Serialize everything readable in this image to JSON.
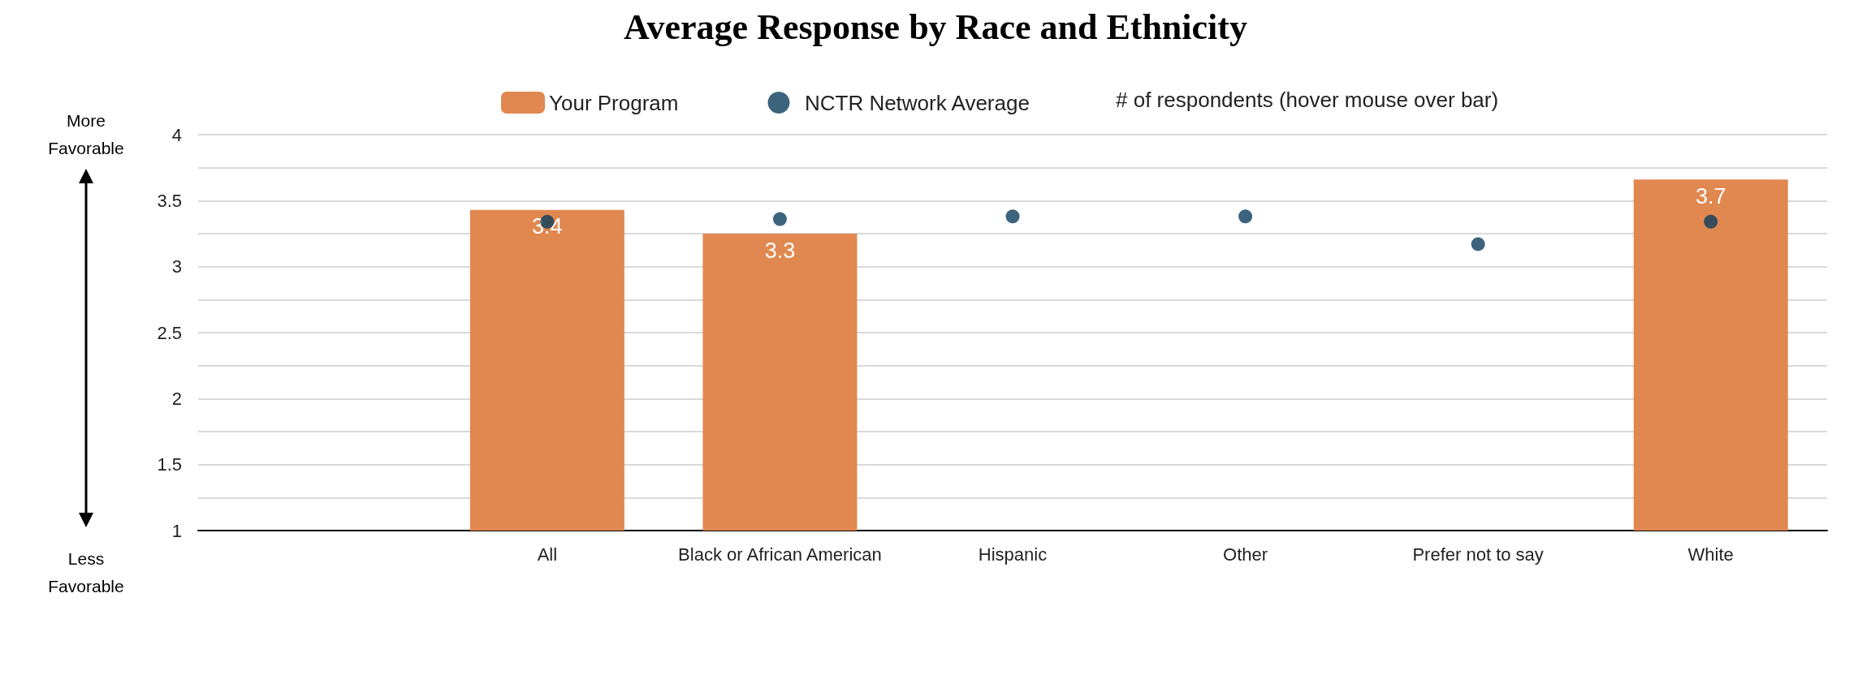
{
  "chart_data": {
    "type": "bar",
    "title": "Average Response by Race and Ethnicity",
    "categories": [
      null,
      "All",
      "Black or African American",
      "Hispanic",
      "Other",
      "Prefer not to say",
      "White"
    ],
    "series": [
      {
        "name": "Your Program",
        "color": "#e08850",
        "values": [
          null,
          3.43,
          3.25,
          null,
          null,
          null,
          3.66
        ],
        "value_labels": [
          null,
          "3.4",
          "3.3",
          null,
          null,
          null,
          "3.7"
        ]
      },
      {
        "name": "NCTR Network Average",
        "type": "scatter",
        "marker": "circle",
        "color": "#0b3d5c",
        "values": [
          null,
          3.34,
          3.36,
          3.38,
          3.38,
          3.17,
          3.34
        ]
      }
    ],
    "ylim": [
      1,
      4
    ],
    "yticks": [
      1,
      {
        "value": 1.25,
        "label": null
      },
      1.5,
      {
        "value": 1.75,
        "label": null
      },
      2,
      {
        "value": 2.25,
        "label": null
      },
      2.5,
      {
        "value": 2.75,
        "label": null
      },
      3,
      {
        "value": 3.25,
        "label": null
      },
      3.5,
      {
        "value": 3.75,
        "label": null
      },
      4
    ],
    "grid": "y",
    "legend": "top",
    "annotations": [
      "# of respondents (hover mouse over bar)",
      "More Favorable",
      "Less Favorable"
    ]
  }
}
